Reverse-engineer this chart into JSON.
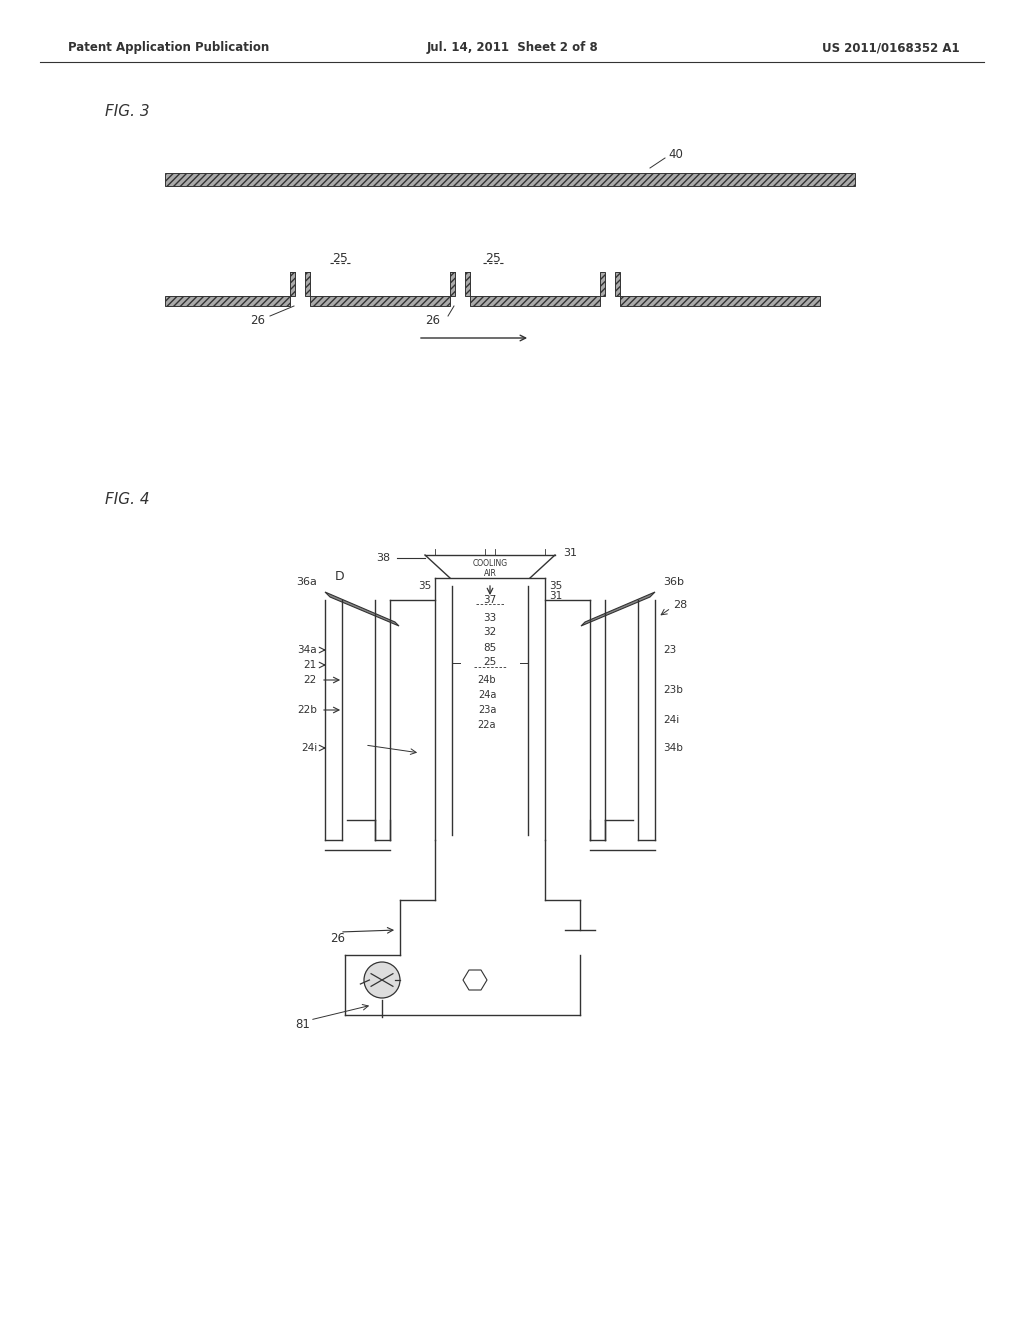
{
  "bg_color": "#ffffff",
  "header_left": "Patent Application Publication",
  "header_mid": "Jul. 14, 2011  Sheet 2 of 8",
  "header_right": "US 2011/0168352 A1",
  "fig3_label": "FIG. 3",
  "fig4_label": "FIG. 4",
  "lc": "#333333",
  "lw": 1.0
}
